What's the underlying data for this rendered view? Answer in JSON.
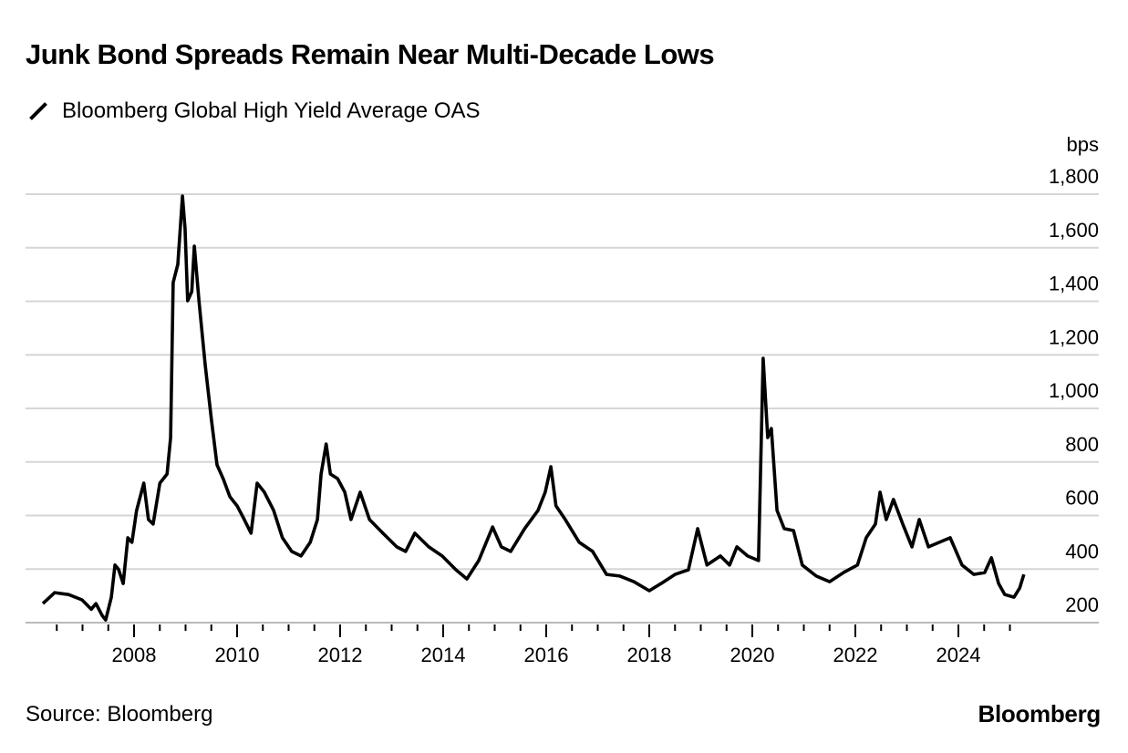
{
  "chart_data": {
    "type": "line",
    "title": "Junk Bond Spreads Remain Near Multi-Decade Lows",
    "ylabel": "bps",
    "xlabel": "",
    "ylim": [
      200,
      1800
    ],
    "xlim": [
      2006.2,
      2025.3
    ],
    "grid": true,
    "legend_position": "top-left",
    "y_ticks": [
      {
        "value": 1800,
        "label": "1,800"
      },
      {
        "value": 1600,
        "label": "1,600"
      },
      {
        "value": 1400,
        "label": "1,400"
      },
      {
        "value": 1200,
        "label": "1,200"
      },
      {
        "value": 1000,
        "label": "1,000"
      },
      {
        "value": 800,
        "label": "800"
      },
      {
        "value": 600,
        "label": "600"
      },
      {
        "value": 400,
        "label": "400"
      },
      {
        "value": 200,
        "label": "200"
      }
    ],
    "x_ticks": [
      {
        "value": 2008,
        "label": "2008"
      },
      {
        "value": 2010,
        "label": "2010"
      },
      {
        "value": 2012,
        "label": "2012"
      },
      {
        "value": 2014,
        "label": "2014"
      },
      {
        "value": 2016,
        "label": "2016"
      },
      {
        "value": 2018,
        "label": "2018"
      },
      {
        "value": 2020,
        "label": "2020"
      },
      {
        "value": 2022,
        "label": "2022"
      },
      {
        "value": 2024,
        "label": "2024"
      }
    ],
    "series": [
      {
        "name": "Bloomberg Global High Yield Average OAS",
        "color": "#000000",
        "x": [
          2006.23,
          2006.46,
          2006.73,
          2006.99,
          2007.17,
          2007.26,
          2007.38,
          2007.45,
          2007.56,
          2007.63,
          2007.7,
          2007.79,
          2007.88,
          2007.96,
          2008.05,
          2008.19,
          2008.28,
          2008.37,
          2008.5,
          2008.64,
          2008.71,
          2008.76,
          2008.85,
          2008.94,
          2008.99,
          2009.04,
          2009.12,
          2009.17,
          2009.26,
          2009.38,
          2009.5,
          2009.61,
          2009.73,
          2009.86,
          2010.0,
          2010.14,
          2010.27,
          2010.39,
          2010.53,
          2010.71,
          2010.88,
          2011.06,
          2011.24,
          2011.42,
          2011.56,
          2011.63,
          2011.73,
          2011.81,
          2011.95,
          2012.09,
          2012.21,
          2012.39,
          2012.57,
          2012.83,
          2013.1,
          2013.27,
          2013.45,
          2013.72,
          2013.98,
          2014.25,
          2014.46,
          2014.69,
          2014.96,
          2015.13,
          2015.31,
          2015.58,
          2015.84,
          2015.98,
          2016.09,
          2016.19,
          2016.37,
          2016.64,
          2016.9,
          2017.17,
          2017.43,
          2017.7,
          2018.0,
          2018.23,
          2018.5,
          2018.76,
          2018.94,
          2019.12,
          2019.38,
          2019.56,
          2019.7,
          2019.91,
          2020.12,
          2020.21,
          2020.3,
          2020.37,
          2020.48,
          2020.62,
          2020.8,
          2020.97,
          2021.24,
          2021.5,
          2021.77,
          2022.04,
          2022.21,
          2022.39,
          2022.48,
          2022.6,
          2022.74,
          2022.92,
          2023.1,
          2023.24,
          2023.42,
          2023.63,
          2023.84,
          2024.07,
          2024.3,
          2024.51,
          2024.64,
          2024.78,
          2024.9,
          2025.08,
          2025.19,
          2025.27
        ],
        "values": [
          271,
          312,
          305,
          285,
          250,
          271,
          227,
          210,
          295,
          415,
          398,
          346,
          517,
          500,
          619,
          721,
          585,
          568,
          721,
          755,
          891,
          1470,
          1538,
          1793,
          1674,
          1402,
          1436,
          1606,
          1402,
          1163,
          959,
          789,
          738,
          670,
          636,
          585,
          534,
          721,
          687,
          619,
          517,
          466,
          449,
          500,
          585,
          755,
          867,
          755,
          738,
          687,
          585,
          687,
          585,
          534,
          483,
          466,
          534,
          483,
          449,
          397,
          363,
          432,
          557,
          483,
          466,
          551,
          619,
          687,
          782,
          636,
          585,
          500,
          466,
          380,
          374,
          353,
          319,
          346,
          380,
          397,
          551,
          415,
          449,
          415,
          483,
          449,
          432,
          1187,
          891,
          925,
          619,
          551,
          544,
          415,
          374,
          353,
          387,
          415,
          517,
          568,
          687,
          585,
          660,
          568,
          483,
          585,
          483,
          500,
          517,
          415,
          380,
          387,
          442,
          346,
          305,
          295,
          329,
          380
        ]
      }
    ]
  },
  "header": {
    "title": "Junk Bond Spreads Remain Near Multi-Decade Lows",
    "legend_label": "Bloomberg Global High Yield Average OAS"
  },
  "footer": {
    "source": "Source: Bloomberg",
    "logo": "Bloomberg"
  }
}
